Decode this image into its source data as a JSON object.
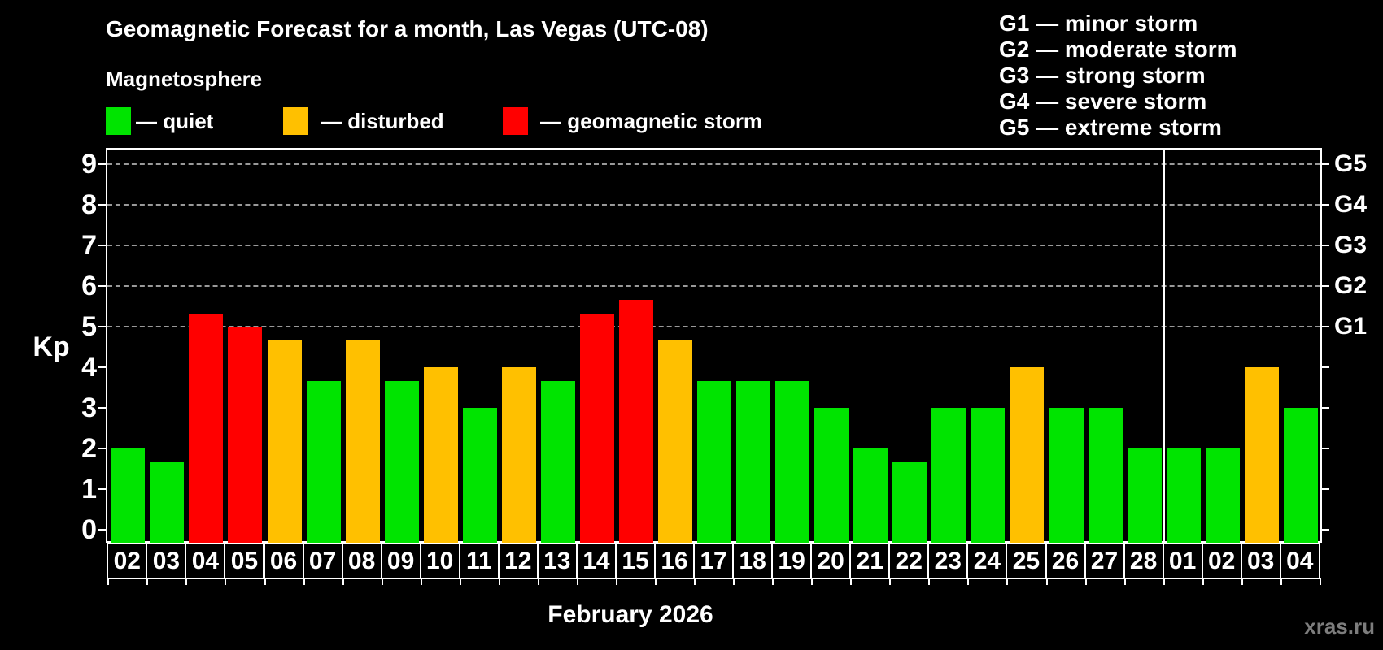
{
  "title": "Geomagnetic Forecast for a month, Las Vegas (UTC-08)",
  "subtitle": "Magnetosphere",
  "legend": {
    "colors": {
      "quiet": "#00e400",
      "disturbed": "#ffc000",
      "storm": "#ff0000"
    },
    "items": [
      {
        "key": "quiet",
        "label": "— quiet"
      },
      {
        "key": "disturbed",
        "label": "— disturbed"
      },
      {
        "key": "storm",
        "label": "— geomagnetic storm"
      }
    ]
  },
  "g_scale_legend": [
    "G1 — minor storm",
    "G2 — moderate storm",
    "G3 — strong storm",
    "G4 — severe storm",
    "G5 — extreme storm"
  ],
  "y_axis": {
    "title": "Kp",
    "ticks": [
      0,
      1,
      2,
      3,
      4,
      5,
      6,
      7,
      8,
      9
    ]
  },
  "right_axis": {
    "labels": [
      {
        "label": "G1",
        "kp": 5
      },
      {
        "label": "G2",
        "kp": 6
      },
      {
        "label": "G3",
        "kp": 7
      },
      {
        "label": "G4",
        "kp": 8
      },
      {
        "label": "G5",
        "kp": 9
      }
    ]
  },
  "x_axis": {
    "month_label": "February 2026"
  },
  "watermark": "xras.ru",
  "chart_data": {
    "type": "bar",
    "title": "Geomagnetic Forecast for a month, Las Vegas (UTC-08)",
    "xlabel": "February 2026",
    "ylabel": "Kp",
    "ylim": [
      0,
      9
    ],
    "gridlines_at": [
      5,
      6,
      7,
      8,
      9
    ],
    "legend_position": "top",
    "month_boundary_index": 27,
    "categories": [
      "02",
      "03",
      "04",
      "05",
      "06",
      "07",
      "08",
      "09",
      "10",
      "11",
      "12",
      "13",
      "14",
      "15",
      "16",
      "17",
      "18",
      "19",
      "20",
      "21",
      "22",
      "23",
      "24",
      "25",
      "26",
      "27",
      "28",
      "01",
      "02",
      "03",
      "04"
    ],
    "values": [
      2.0,
      1.67,
      5.33,
      5.0,
      4.67,
      3.67,
      4.67,
      3.67,
      4.0,
      3.0,
      4.0,
      3.67,
      5.33,
      5.67,
      4.67,
      3.67,
      3.67,
      3.67,
      3.0,
      2.0,
      1.67,
      3.0,
      3.0,
      4.0,
      3.0,
      3.0,
      2.0,
      2.0,
      2.0,
      4.0,
      3.0
    ],
    "statuses": [
      "quiet",
      "quiet",
      "storm",
      "storm",
      "disturbed",
      "quiet",
      "disturbed",
      "quiet",
      "disturbed",
      "quiet",
      "disturbed",
      "quiet",
      "storm",
      "storm",
      "disturbed",
      "quiet",
      "quiet",
      "quiet",
      "quiet",
      "quiet",
      "quiet",
      "quiet",
      "quiet",
      "disturbed",
      "quiet",
      "quiet",
      "quiet",
      "quiet",
      "quiet",
      "disturbed",
      "quiet"
    ]
  }
}
